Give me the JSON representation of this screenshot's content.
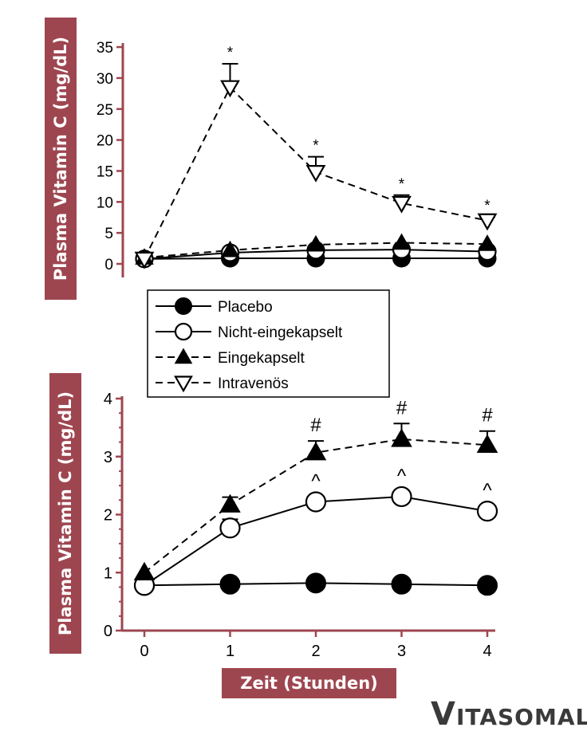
{
  "chart_data": [
    {
      "type": "line",
      "panel": "top",
      "ylabel": "Plasma Vitamin C (mg/dL)",
      "xlabel": "",
      "x": [
        0,
        1,
        2,
        3,
        4
      ],
      "xlim": [
        0,
        4
      ],
      "ylim": [
        0,
        35
      ],
      "yticks": [
        "0",
        "5",
        "10",
        "15",
        "20",
        "25",
        "30",
        "35"
      ],
      "series": [
        {
          "name": "Placebo",
          "values": [
            0.8,
            0.9,
            0.9,
            0.9,
            0.9
          ],
          "errors": [
            0,
            0,
            0,
            0,
            0
          ],
          "marker": "filled-circle",
          "line": "solid"
        },
        {
          "name": "Nicht-eingekapselt",
          "values": [
            0.8,
            1.8,
            2.2,
            2.3,
            2.0
          ],
          "errors": [
            0,
            0,
            0,
            0,
            0
          ],
          "marker": "open-circle",
          "line": "solid"
        },
        {
          "name": "Eingekapselt",
          "values": [
            1.0,
            2.2,
            3.1,
            3.4,
            3.2
          ],
          "errors": [
            0,
            0,
            0,
            0,
            0
          ],
          "marker": "filled-triangle-up",
          "line": "dashed"
        },
        {
          "name": "Intravenös",
          "values": [
            0.8,
            28.5,
            14.8,
            9.8,
            7.0
          ],
          "errors": [
            0,
            3.8,
            2.5,
            1.3,
            0.6
          ],
          "marker": "open-triangle-down",
          "line": "dashed"
        }
      ],
      "annotations": [
        {
          "x": 1,
          "text": "*",
          "series": "Intravenös"
        },
        {
          "x": 2,
          "text": "*",
          "series": "Intravenös"
        },
        {
          "x": 3,
          "text": "*",
          "series": "Intravenös"
        },
        {
          "x": 4,
          "text": "*",
          "series": "Intravenös"
        }
      ]
    },
    {
      "type": "line",
      "panel": "bottom",
      "ylabel": "Plasma Vitamin C (mg/dL)",
      "xlabel": "Zeit (Stunden)",
      "x": [
        0,
        1,
        2,
        3,
        4
      ],
      "xticks": [
        "0",
        "1",
        "2",
        "3",
        "4"
      ],
      "xlim": [
        0,
        4
      ],
      "ylim": [
        0,
        4
      ],
      "yticks": [
        "0",
        "1",
        "2",
        "3",
        "4"
      ],
      "series": [
        {
          "name": "Placebo",
          "values": [
            0.78,
            0.8,
            0.82,
            0.8,
            0.78
          ],
          "errors": [
            0,
            0,
            0,
            0,
            0
          ],
          "marker": "filled-circle",
          "line": "solid"
        },
        {
          "name": "Nicht-eingekapselt",
          "values": [
            0.78,
            1.77,
            2.22,
            2.31,
            2.06
          ],
          "errors": [
            0,
            0.15,
            0,
            0,
            0
          ],
          "marker": "open-circle",
          "line": "solid"
        },
        {
          "name": "Eingekapselt",
          "values": [
            1.0,
            2.17,
            3.07,
            3.3,
            3.2
          ],
          "errors": [
            0,
            0.13,
            0.2,
            0.27,
            0.24
          ],
          "marker": "filled-triangle-up",
          "line": "dashed"
        }
      ],
      "annotations": [
        {
          "x": 2,
          "text": "#",
          "series": "Eingekapselt"
        },
        {
          "x": 3,
          "text": "#",
          "series": "Eingekapselt"
        },
        {
          "x": 4,
          "text": "#",
          "series": "Eingekapselt"
        },
        {
          "x": 2,
          "text": "^",
          "series": "Nicht-eingekapselt"
        },
        {
          "x": 3,
          "text": "^",
          "series": "Nicht-eingekapselt"
        },
        {
          "x": 4,
          "text": "^",
          "series": "Nicht-eingekapselt"
        }
      ]
    }
  ],
  "legend": {
    "placement": "between panels",
    "entries": [
      "Placebo",
      "Nicht-eingekapselt",
      "Eingekapselt",
      "Intravenös"
    ]
  },
  "colors": {
    "accent": "#9e4650",
    "ink": "#000000",
    "brand": "#3a3a3a"
  },
  "brand": {
    "logo_text": "VITASOMAL",
    "first_letter": "V",
    "rest": "ITASOMAL"
  }
}
